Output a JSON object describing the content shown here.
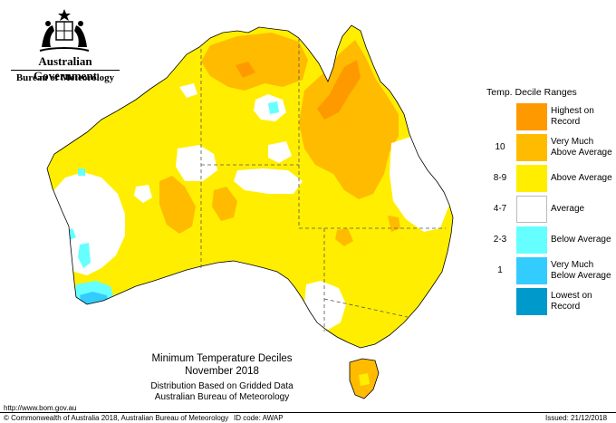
{
  "header": {
    "government": "Australian Government",
    "bureau": "Bureau of Meteorology",
    "crest_icon": "coat-of-arms-icon"
  },
  "map": {
    "title": "Minimum Temperature Deciles",
    "period": "November 2018",
    "subtitle_line1": "Distribution Based on Gridded Data",
    "subtitle_line2": "Australian Bureau of Meteorology"
  },
  "legend": {
    "title": "Temp. Decile Ranges",
    "items": [
      {
        "code": "",
        "label_line1": "Highest on",
        "label_line2": "Record",
        "color": "#ff9900"
      },
      {
        "code": "10",
        "label_line1": "Very Much",
        "label_line2": "Above Average",
        "color": "#ffbb00"
      },
      {
        "code": "8-9",
        "label_line1": "Above Average",
        "label_line2": "",
        "color": "#ffee00"
      },
      {
        "code": "4-7",
        "label_line1": "Average",
        "label_line2": "",
        "color": "#ffffff"
      },
      {
        "code": "2-3",
        "label_line1": "Below Average",
        "label_line2": "",
        "color": "#66ffff"
      },
      {
        "code": "1",
        "label_line1": "Very Much",
        "label_line2": "Below Average",
        "color": "#33ccff"
      },
      {
        "code": "",
        "label_line1": "Lowest on",
        "label_line2": "Record",
        "color": "#0099cc"
      }
    ]
  },
  "footer": {
    "url": "http://www.bom.gov.au",
    "copyright": "© Commonwealth of Australia 2018, Australian Bureau of Meteorology",
    "id_code": "ID code: AWAP",
    "issued": "Issued: 21/12/2018"
  }
}
